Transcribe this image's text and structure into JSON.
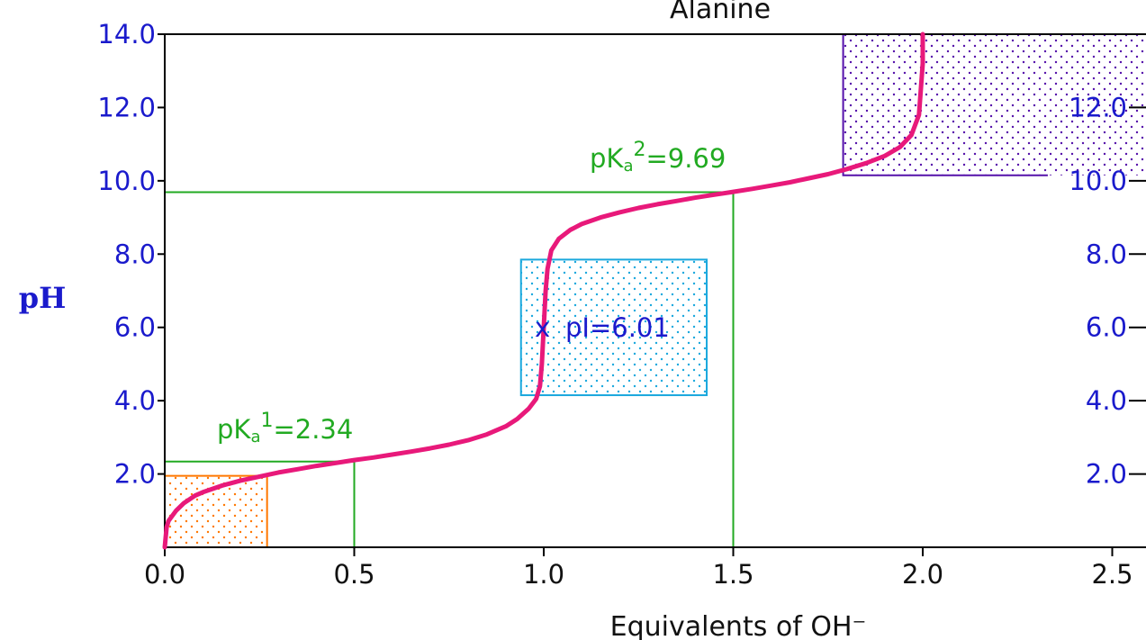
{
  "chart_data": {
    "type": "line",
    "title": "Alanine",
    "xlabel": "Equivalents of OH⁻",
    "ylabel": "pH",
    "xlim": [
      0,
      2.6
    ],
    "ylim": [
      0,
      14
    ],
    "x_ticks": [
      "0.0",
      "0.5",
      "1.0",
      "1.5",
      "2.0",
      "2.5"
    ],
    "y_ticks_left": [
      "2.0",
      "4.0",
      "6.0",
      "8.0",
      "10.0",
      "12.0",
      "14.0"
    ],
    "y_ticks_right": [
      "2.0",
      "4.0",
      "6.0",
      "8.0",
      "10.0",
      "12.0"
    ],
    "grid": false,
    "series": [
      {
        "values": [
          [
            0.0,
            0.0
          ],
          [
            0.005,
            0.55
          ],
          [
            0.01,
            0.72
          ],
          [
            0.03,
            1.0
          ],
          [
            0.05,
            1.2
          ],
          [
            0.08,
            1.41
          ],
          [
            0.1,
            1.5
          ],
          [
            0.15,
            1.68
          ],
          [
            0.2,
            1.82
          ],
          [
            0.25,
            1.93
          ],
          [
            0.3,
            2.04
          ],
          [
            0.35,
            2.13
          ],
          [
            0.4,
            2.22
          ],
          [
            0.45,
            2.3
          ],
          [
            0.5,
            2.38
          ],
          [
            0.55,
            2.45
          ],
          [
            0.6,
            2.53
          ],
          [
            0.65,
            2.61
          ],
          [
            0.7,
            2.7
          ],
          [
            0.75,
            2.8
          ],
          [
            0.8,
            2.92
          ],
          [
            0.85,
            3.08
          ],
          [
            0.9,
            3.3
          ],
          [
            0.93,
            3.5
          ],
          [
            0.96,
            3.78
          ],
          [
            0.98,
            4.05
          ],
          [
            0.99,
            4.4
          ],
          [
            0.995,
            5.0
          ],
          [
            1.0,
            6.0
          ],
          [
            1.005,
            7.0
          ],
          [
            1.01,
            7.6
          ],
          [
            1.02,
            8.1
          ],
          [
            1.04,
            8.42
          ],
          [
            1.07,
            8.66
          ],
          [
            1.1,
            8.82
          ],
          [
            1.15,
            9.0
          ],
          [
            1.2,
            9.14
          ],
          [
            1.25,
            9.26
          ],
          [
            1.3,
            9.36
          ],
          [
            1.35,
            9.45
          ],
          [
            1.4,
            9.54
          ],
          [
            1.45,
            9.62
          ],
          [
            1.5,
            9.7
          ],
          [
            1.55,
            9.78
          ],
          [
            1.6,
            9.87
          ],
          [
            1.65,
            9.96
          ],
          [
            1.7,
            10.07
          ],
          [
            1.75,
            10.18
          ],
          [
            1.8,
            10.32
          ],
          [
            1.85,
            10.48
          ],
          [
            1.9,
            10.68
          ],
          [
            1.94,
            10.92
          ],
          [
            1.97,
            11.25
          ],
          [
            1.99,
            11.8
          ],
          [
            1.995,
            12.5
          ],
          [
            2.0,
            13.2
          ],
          [
            2.0,
            14.0
          ]
        ],
        "color": "#e8197a"
      }
    ],
    "annotations": {
      "pka1": {
        "label_main": "pK",
        "label_sub": "a",
        "label_sup": "1",
        "label_value": "=2.34",
        "x": 0.5,
        "y": 2.34,
        "color": "#22aa22"
      },
      "pka2": {
        "label_main": "pK",
        "label_sub": "a",
        "label_sup": "2",
        "label_value": "=9.69",
        "x": 1.5,
        "y": 9.69,
        "color": "#22aa22"
      },
      "pi": {
        "marker": "x",
        "label": "pI=6.01",
        "x": 1.0,
        "y": 6.01,
        "color": "#1a1acc"
      }
    },
    "regions": [
      {
        "x": [
          0,
          0.27
        ],
        "y": [
          0,
          1.95
        ],
        "color": "#ff7700"
      },
      {
        "x": [
          0.94,
          1.43
        ],
        "y": [
          4.15,
          7.85
        ],
        "color": "#1aa8dd"
      },
      {
        "x": [
          1.79,
          2.6
        ],
        "y": [
          10.15,
          14.0
        ],
        "color": "#5511aa"
      }
    ]
  }
}
